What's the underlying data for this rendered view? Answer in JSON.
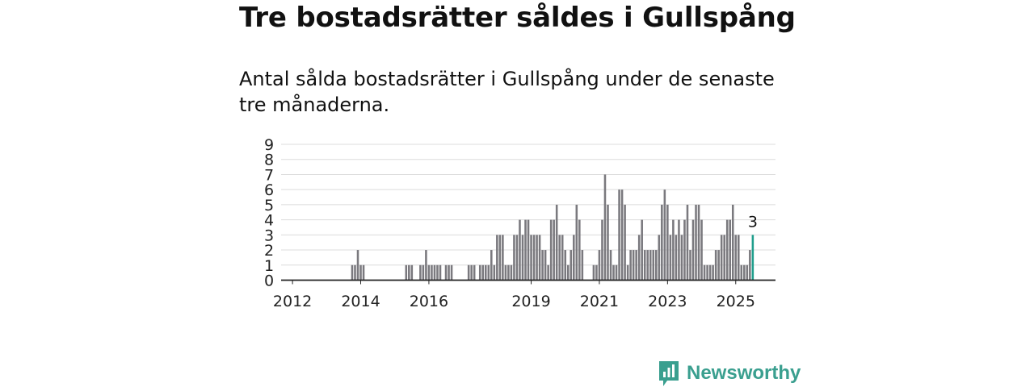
{
  "title": "Tre bostadsrätter såldes i Gullspång",
  "subtitle": "Antal sålda bostadsrätter i Gullspång under de senaste tre månaderna.",
  "brand": {
    "name": "Newsworthy",
    "color": "#3a9f8f"
  },
  "chart_data": {
    "type": "bar",
    "x_unit": "month",
    "x_start": "2011-11",
    "values": [
      0,
      0,
      0,
      0,
      0,
      0,
      0,
      0,
      0,
      0,
      0,
      0,
      0,
      0,
      0,
      0,
      0,
      0,
      0,
      0,
      0,
      0,
      0,
      1,
      1,
      2,
      1,
      1,
      0,
      0,
      0,
      0,
      0,
      0,
      0,
      0,
      0,
      0,
      0,
      0,
      0,
      0,
      1,
      1,
      1,
      0,
      0,
      1,
      1,
      2,
      1,
      1,
      1,
      1,
      1,
      0,
      1,
      1,
      1,
      0,
      0,
      0,
      0,
      0,
      1,
      1,
      1,
      0,
      1,
      1,
      1,
      1,
      2,
      1,
      3,
      3,
      3,
      1,
      1,
      1,
      3,
      3,
      4,
      3,
      4,
      4,
      3,
      3,
      3,
      3,
      2,
      2,
      1,
      4,
      4,
      5,
      3,
      3,
      2,
      1,
      2,
      3,
      5,
      4,
      2,
      0,
      0,
      0,
      1,
      1,
      2,
      4,
      7,
      5,
      2,
      1,
      1,
      6,
      6,
      5,
      1,
      2,
      2,
      2,
      3,
      4,
      2,
      2,
      2,
      2,
      2,
      3,
      5,
      6,
      5,
      3,
      4,
      3,
      4,
      3,
      4,
      5,
      2,
      4,
      5,
      5,
      4,
      1,
      1,
      1,
      1,
      2,
      2,
      3,
      3,
      4,
      4,
      5,
      3,
      3,
      1,
      1,
      1,
      2,
      3
    ],
    "x_ticks": [
      "2012",
      "2014",
      "2016",
      "2019",
      "2021",
      "2023",
      "2025"
    ],
    "y_ticks": [
      0,
      1,
      2,
      3,
      4,
      5,
      6,
      7,
      8,
      9
    ],
    "ylim": [
      0,
      9
    ],
    "bar_color": "#7a797e",
    "highlight_color": "#1f9e8c",
    "annotation": "3",
    "grid": true,
    "xlabel": "",
    "ylabel": ""
  }
}
